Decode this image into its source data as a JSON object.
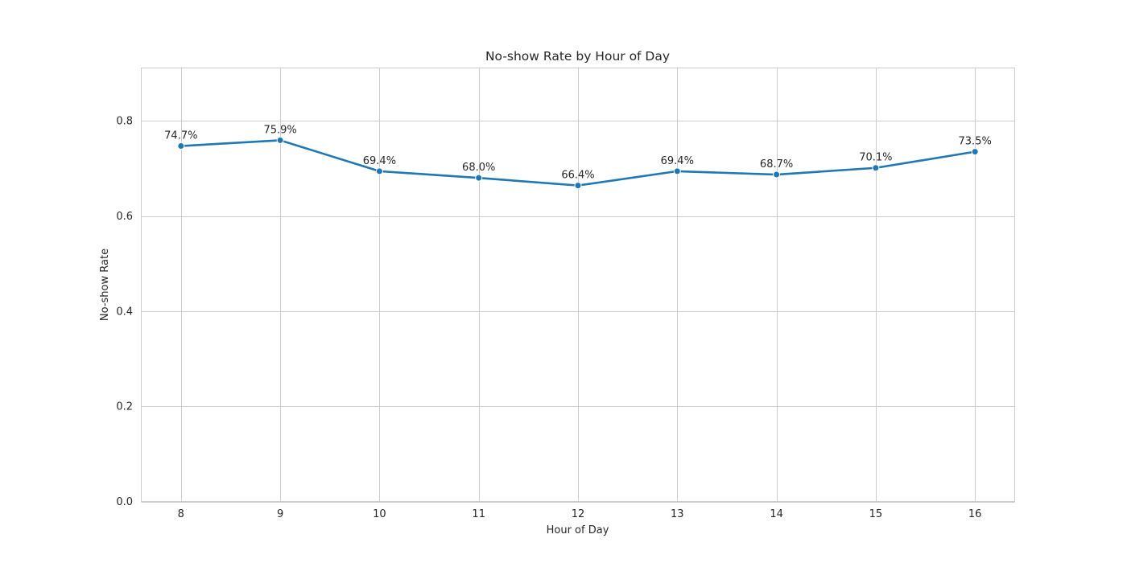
{
  "chart_data": {
    "type": "line",
    "title": "No-show Rate by Hour of Day",
    "xlabel": "Hour of Day",
    "ylabel": "No-show Rate",
    "x": [
      8,
      9,
      10,
      11,
      12,
      13,
      14,
      15,
      16
    ],
    "series": [
      {
        "values": [
          0.747,
          0.759,
          0.694,
          0.68,
          0.664,
          0.694,
          0.687,
          0.701,
          0.735
        ],
        "labels": [
          "74.7%",
          "75.9%",
          "69.4%",
          "68.0%",
          "66.4%",
          "69.4%",
          "68.7%",
          "70.1%",
          "73.5%"
        ],
        "color": "#1f77b4"
      }
    ],
    "xticks": [
      "8",
      "9",
      "10",
      "11",
      "12",
      "13",
      "14",
      "15",
      "16"
    ],
    "yticks": [
      "0.0",
      "0.2",
      "0.4",
      "0.6",
      "0.8"
    ],
    "ytick_values": [
      0.0,
      0.2,
      0.4,
      0.6,
      0.8
    ],
    "xlim": [
      7.6,
      16.4
    ],
    "ylim": [
      0,
      0.911
    ],
    "grid": true,
    "legend": false
  }
}
